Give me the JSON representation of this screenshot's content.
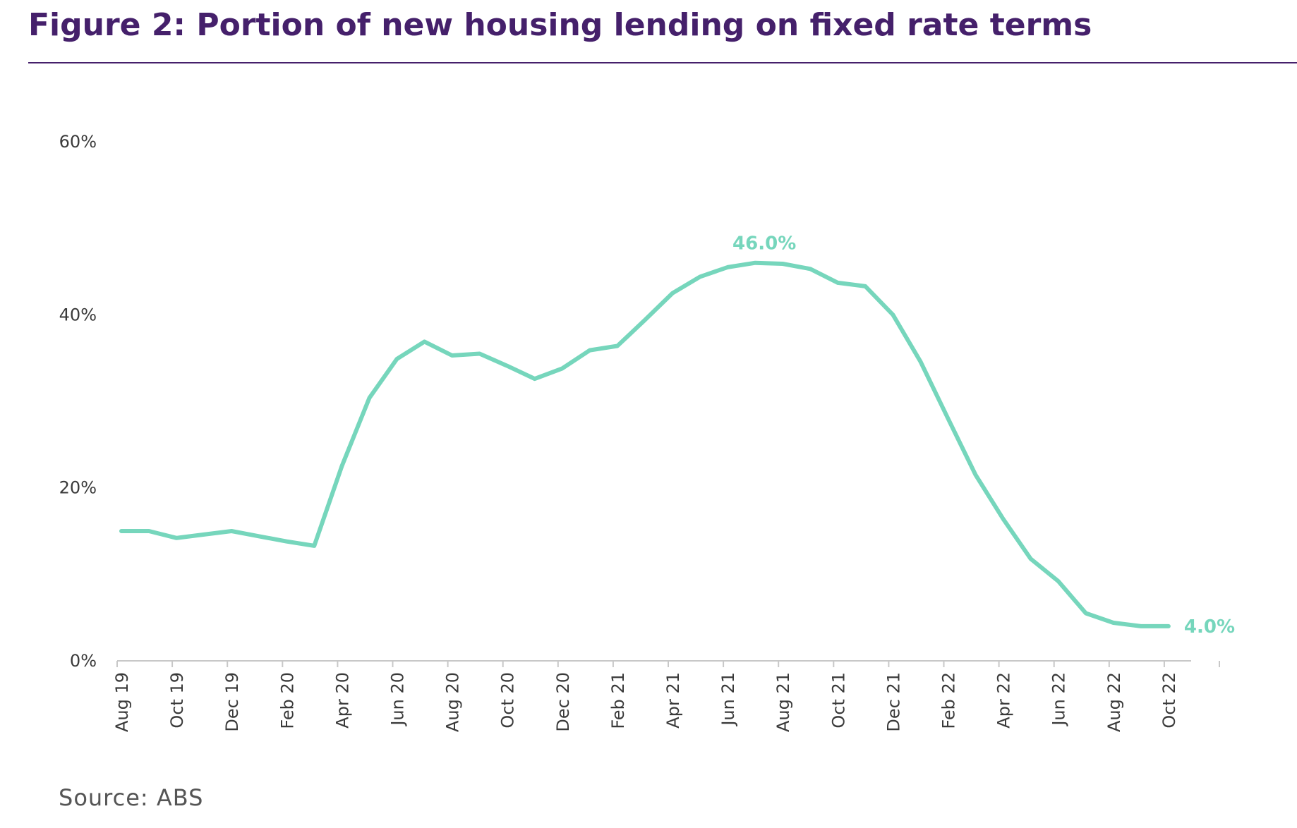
{
  "title": "Figure 2: Portion of new housing lending on fixed rate terms",
  "source": "Source: ABS",
  "colors": {
    "title": "#45206b",
    "line": "#76d6bc",
    "axis": "#c8c8c8",
    "tick_text": "#3a3a3a",
    "source_text": "#555555"
  },
  "chart_data": {
    "type": "line",
    "title": "Figure 2: Portion of new housing lending on fixed rate terms",
    "xlabel": "",
    "ylabel": "",
    "ylim": [
      0,
      60
    ],
    "yticks": [
      0,
      20,
      40,
      60
    ],
    "ytick_labels": [
      "0%",
      "20%",
      "40%",
      "60%"
    ],
    "grid": false,
    "legend": "none",
    "x": [
      "Aug 19",
      "Sep 19",
      "Oct 19",
      "Nov 19",
      "Dec 19",
      "Jan 20",
      "Feb 20",
      "Mar 20",
      "Apr 20",
      "May 20",
      "Jun 20",
      "Jul 20",
      "Aug 20",
      "Sep 20",
      "Oct 20",
      "Nov 20",
      "Dec 20",
      "Jan 21",
      "Feb 21",
      "Mar 21",
      "Apr 21",
      "May 21",
      "Jun 21",
      "Jul 21",
      "Aug 21",
      "Sep 21",
      "Oct 21",
      "Nov 21",
      "Dec 21",
      "Jan 22",
      "Feb 22",
      "Mar 22",
      "Apr 22",
      "May 22",
      "Jun 22",
      "Jul 22",
      "Aug 22",
      "Sep 22",
      "Oct 22"
    ],
    "xtick_labels": [
      "Aug 19",
      "Oct 19",
      "Dec 19",
      "Feb 20",
      "Apr 20",
      "Jun 20",
      "Aug 20",
      "Oct 20",
      "Dec 20",
      "Feb 21",
      "Apr 21",
      "Jun 21",
      "Aug 21",
      "Oct 21",
      "Dec 21",
      "Feb 22",
      "Apr 22",
      "Jun 22",
      "Aug 22",
      "Oct 22"
    ],
    "series": [
      {
        "values": [
          15.0,
          15.0,
          14.2,
          14.6,
          15.0,
          14.4,
          13.8,
          13.3,
          22.5,
          30.4,
          34.9,
          36.9,
          35.3,
          35.5,
          34.1,
          32.6,
          33.8,
          35.9,
          36.4,
          39.4,
          42.5,
          44.4,
          45.5,
          46.0,
          45.9,
          45.3,
          43.7,
          43.3,
          40.0,
          34.6,
          28.0,
          21.5,
          16.4,
          11.8,
          9.2,
          5.5,
          4.4,
          4.0,
          4.0
        ]
      }
    ],
    "annotations": [
      {
        "label": "46.0%",
        "x": "Jul 21",
        "value": 46.0
      },
      {
        "label": "4.0%",
        "x": "Oct 22",
        "value": 4.0
      }
    ]
  }
}
